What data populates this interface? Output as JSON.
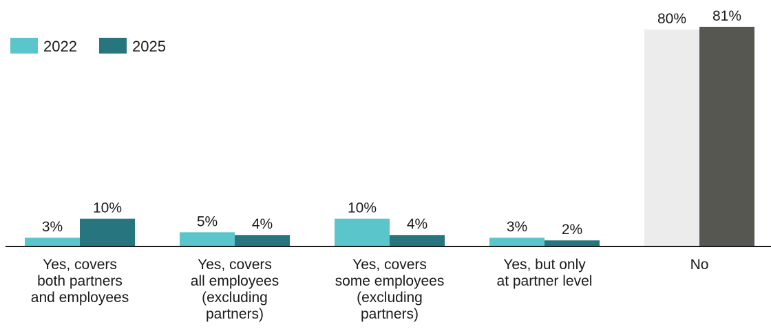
{
  "chart_data": {
    "type": "bar",
    "title": "",
    "xlabel": "",
    "ylabel": "",
    "ylim": [
      0,
      81
    ],
    "grid": false,
    "legend_position": "top-left",
    "categories": [
      [
        "Yes, covers",
        "both partners",
        "and employees"
      ],
      [
        "Yes, covers",
        "all employees",
        "(excluding",
        "partners)"
      ],
      [
        "Yes, covers",
        "some employees",
        "(excluding",
        "partners)"
      ],
      [
        "Yes, but only",
        "at partner level"
      ],
      [
        "No"
      ]
    ],
    "series": [
      {
        "name": "2022",
        "color": "#5bc5cc",
        "values": [
          3,
          5,
          10,
          3,
          80
        ],
        "labels": [
          "3%",
          "5%",
          "10%",
          "3%",
          "80%"
        ]
      },
      {
        "name": "2025",
        "color": "#26757f",
        "values": [
          10,
          4,
          4,
          2,
          81
        ],
        "labels": [
          "10%",
          "4%",
          "4%",
          "2%",
          "81%"
        ]
      }
    ],
    "highlight_overrides": {
      "category_index": 4,
      "colors": [
        "#ececec",
        "#575751"
      ]
    },
    "axis_color": "#1a1a1a"
  }
}
